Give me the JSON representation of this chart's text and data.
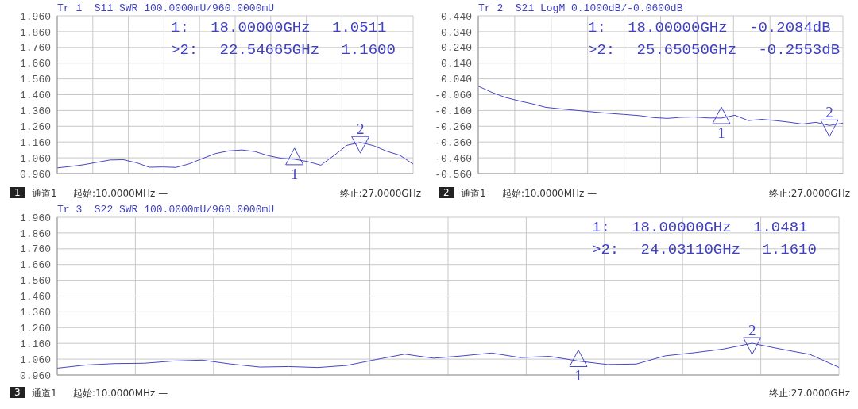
{
  "chart_data": [
    {
      "type": "line",
      "title": "Tr 1  S11 SWR 100.0000mU/960.0000mU",
      "grid": true,
      "tick_labels": "y",
      "categories": [
        null,
        null,
        null,
        null,
        null,
        null,
        null,
        null,
        null,
        null,
        null,
        null,
        null,
        null,
        null,
        null,
        null,
        null,
        null,
        null,
        null,
        null,
        null,
        null,
        null,
        null,
        null,
        null
      ],
      "ylim": [
        0.96,
        1.96
      ],
      "yticks": [
        {
          "value": 0.96,
          "label": "0.960"
        },
        {
          "value": 1.06,
          "label": "1.060"
        },
        {
          "value": 1.16,
          "label": "1.160"
        },
        {
          "value": 1.26,
          "label": "1.260"
        },
        {
          "value": 1.36,
          "label": "1.360"
        },
        {
          "value": 1.46,
          "label": "1.460"
        },
        {
          "value": 1.56,
          "label": "1.560"
        },
        {
          "value": 1.66,
          "label": "1.660"
        },
        {
          "value": 1.76,
          "label": "1.760"
        },
        {
          "value": 1.86,
          "label": "1.860"
        },
        {
          "value": 1.96,
          "label": "1.960"
        }
      ],
      "series": [
        {
          "color": "#4646c8",
          "values": [
            0.996,
            1.005,
            1.016,
            1.031,
            1.046,
            1.048,
            1.029,
            1.0,
            1.002,
            0.999,
            1.021,
            1.055,
            1.087,
            1.104,
            1.11,
            1.1,
            1.074,
            1.057,
            1.051,
            1.036,
            1.013,
            1.075,
            1.14,
            1.157,
            1.137,
            1.102,
            1.076,
            1.02
          ]
        },
        {
          "type": "scatter",
          "name": "1",
          "marker": "triangle",
          "color": "#4646c8",
          "values": [
            null,
            null,
            null,
            null,
            null,
            null,
            null,
            null,
            null,
            null,
            null,
            null,
            null,
            null,
            null,
            null,
            null,
            null,
            1.0511,
            null,
            null,
            null,
            null,
            null,
            null,
            null,
            null,
            null
          ]
        },
        {
          "type": "scatter",
          "name": "2",
          "marker": "triangle",
          "color": "#4646c8",
          "values": [
            null,
            null,
            null,
            null,
            null,
            null,
            null,
            null,
            null,
            null,
            null,
            null,
            null,
            null,
            null,
            null,
            null,
            null,
            null,
            null,
            null,
            null,
            null,
            1.16,
            null,
            null,
            null,
            null
          ]
        }
      ],
      "annotations": [
        "1: 18.00000GHz 1.0511",
        ">2: 22.54665GHz 1.1600",
        "1",
        "通道1",
        "起始:10.0000MHz —",
        "终止:27.0000GHz"
      ]
    },
    {
      "type": "line",
      "title": "Tr 2  S21 LogM 0.1000dB/-0.0600dB",
      "grid": true,
      "tick_labels": "y",
      "categories": [
        null,
        null,
        null,
        null,
        null,
        null,
        null,
        null,
        null,
        null,
        null,
        null,
        null,
        null,
        null,
        null,
        null,
        null,
        null,
        null,
        null,
        null,
        null,
        null,
        null,
        null,
        null,
        null
      ],
      "ylim": [
        -0.56,
        0.44
      ],
      "yticks": [
        {
          "value": -0.56,
          "label": "-0.560"
        },
        {
          "value": -0.46,
          "label": "-0.460"
        },
        {
          "value": -0.36,
          "label": "-0.360"
        },
        {
          "value": -0.26,
          "label": "-0.260"
        },
        {
          "value": -0.16,
          "label": "-0.160"
        },
        {
          "value": -0.06,
          "label": "-0.060"
        },
        {
          "value": 0.04,
          "label": "0.040"
        },
        {
          "value": 0.14,
          "label": "0.140"
        },
        {
          "value": 0.24,
          "label": "0.240"
        },
        {
          "value": 0.34,
          "label": "0.340"
        },
        {
          "value": 0.44,
          "label": "0.440"
        }
      ],
      "series": [
        {
          "color": "#4646c8",
          "values": [
            -0.006,
            -0.045,
            -0.077,
            -0.099,
            -0.118,
            -0.14,
            -0.149,
            -0.157,
            -0.165,
            -0.173,
            -0.18,
            -0.186,
            -0.193,
            -0.205,
            -0.21,
            -0.203,
            -0.201,
            -0.207,
            -0.208,
            -0.19,
            -0.224,
            -0.216,
            -0.224,
            -0.234,
            -0.246,
            -0.235,
            -0.255,
            -0.24
          ]
        },
        {
          "type": "scatter",
          "name": "1",
          "marker": "triangle",
          "color": "#4646c8",
          "values": [
            null,
            null,
            null,
            null,
            null,
            null,
            null,
            null,
            null,
            null,
            null,
            null,
            null,
            null,
            null,
            null,
            null,
            null,
            -0.2084,
            null,
            null,
            null,
            null,
            null,
            null,
            null,
            null,
            null
          ]
        },
        {
          "type": "scatter",
          "name": "2",
          "marker": "triangle",
          "color": "#4646c8",
          "values": [
            null,
            null,
            null,
            null,
            null,
            null,
            null,
            null,
            null,
            null,
            null,
            null,
            null,
            null,
            null,
            null,
            null,
            null,
            null,
            null,
            null,
            null,
            null,
            null,
            null,
            null,
            -0.2553,
            null
          ]
        }
      ],
      "annotations": [
        "1: 18.00000GHz -0.2084dB",
        ">2: 25.65050GHz -0.2553dB",
        "2",
        "通道1",
        "起始:10.0000MHz —",
        "终止:27.0000GHz"
      ]
    },
    {
      "type": "line",
      "title": "Tr 3  S22 SWR 100.0000mU/960.0000mU",
      "grid": true,
      "tick_labels": "y",
      "categories": [
        null,
        null,
        null,
        null,
        null,
        null,
        null,
        null,
        null,
        null,
        null,
        null,
        null,
        null,
        null,
        null,
        null,
        null,
        null,
        null,
        null,
        null,
        null,
        null,
        null,
        null,
        null,
        null
      ],
      "ylim": [
        0.96,
        1.96
      ],
      "yticks": [
        {
          "value": 0.96,
          "label": "0.960"
        },
        {
          "value": 1.06,
          "label": "1.060"
        },
        {
          "value": 1.16,
          "label": "1.160"
        },
        {
          "value": 1.26,
          "label": "1.260"
        },
        {
          "value": 1.36,
          "label": "1.360"
        },
        {
          "value": 1.46,
          "label": "1.460"
        },
        {
          "value": 1.56,
          "label": "1.560"
        },
        {
          "value": 1.66,
          "label": "1.660"
        },
        {
          "value": 1.76,
          "label": "1.760"
        },
        {
          "value": 1.86,
          "label": "1.860"
        },
        {
          "value": 1.96,
          "label": "1.960"
        }
      ],
      "series": [
        {
          "color": "#4646c8",
          "values": [
            1.003,
            1.023,
            1.032,
            1.034,
            1.048,
            1.054,
            1.029,
            1.01,
            1.013,
            1.007,
            1.02,
            1.057,
            1.092,
            1.066,
            1.081,
            1.099,
            1.07,
            1.078,
            1.048,
            1.026,
            1.029,
            1.081,
            1.101,
            1.124,
            1.161,
            1.124,
            1.09,
            1.008
          ]
        },
        {
          "type": "scatter",
          "name": "1",
          "marker": "triangle",
          "color": "#4646c8",
          "values": [
            null,
            null,
            null,
            null,
            null,
            null,
            null,
            null,
            null,
            null,
            null,
            null,
            null,
            null,
            null,
            null,
            null,
            null,
            1.0481,
            null,
            null,
            null,
            null,
            null,
            null,
            null,
            null,
            null
          ]
        },
        {
          "type": "scatter",
          "name": "2",
          "marker": "triangle",
          "color": "#4646c8",
          "values": [
            null,
            null,
            null,
            null,
            null,
            null,
            null,
            null,
            null,
            null,
            null,
            null,
            null,
            null,
            null,
            null,
            null,
            null,
            null,
            null,
            null,
            null,
            null,
            null,
            1.161,
            null,
            null,
            null
          ]
        }
      ],
      "annotations": [
        "1: 18.00000GHz 1.0481",
        ">2: 24.03110GHz 1.1610",
        "3",
        "通道1",
        "起始:10.0000MHz —",
        "终止:27.0000GHz"
      ]
    }
  ]
}
